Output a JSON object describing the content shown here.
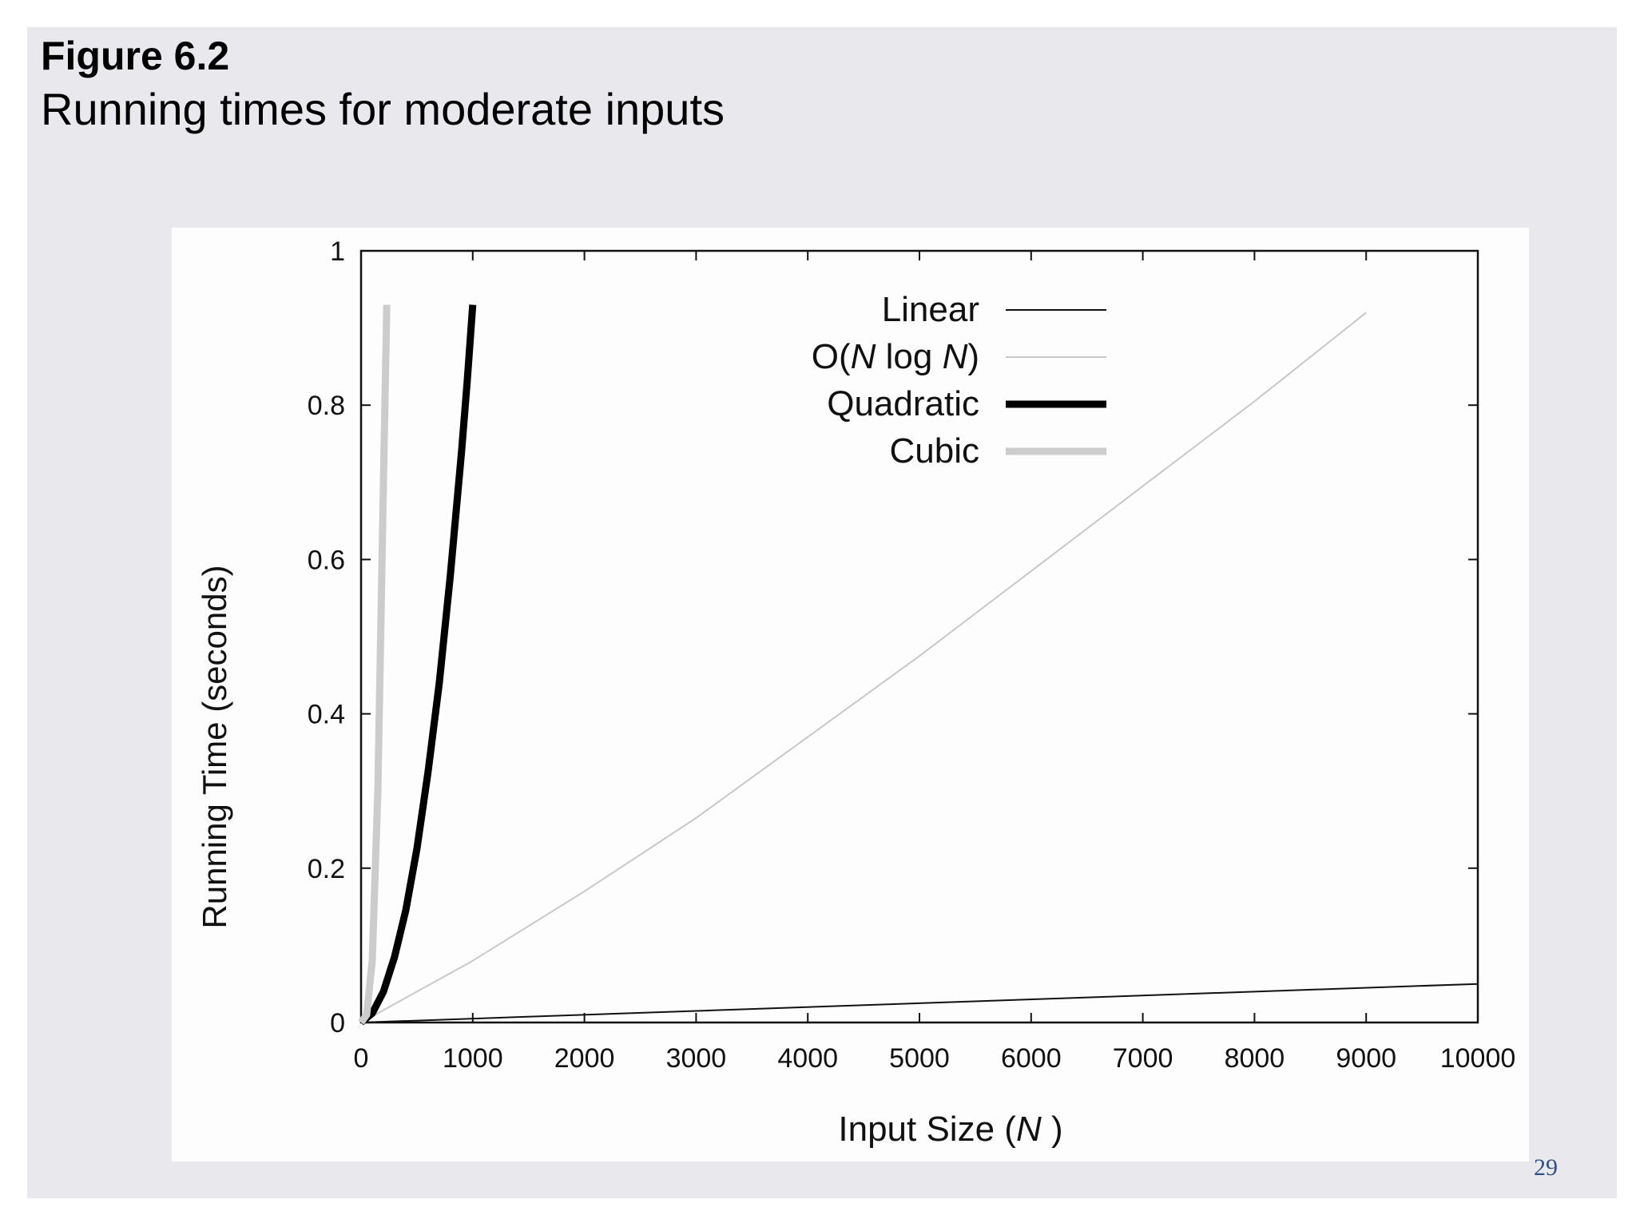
{
  "slide": {
    "figure_label": "Figure 6.2",
    "title": "Running times for moderate inputs",
    "page_number": "29"
  },
  "chart_data": {
    "type": "line",
    "xlabel_main": "Input Size (",
    "xlabel_var": "N",
    "xlabel_close": " )",
    "ylabel": "Running Time (seconds)",
    "xlim": [
      0,
      10000
    ],
    "ylim": [
      0,
      1
    ],
    "x_ticks": [
      0,
      1000,
      2000,
      3000,
      4000,
      5000,
      6000,
      7000,
      8000,
      9000,
      10000
    ],
    "y_ticks": [
      0,
      0.2,
      0.4,
      0.6,
      0.8,
      1
    ],
    "y_tick_labels": [
      "0",
      "0.2",
      "0.4",
      "0.6",
      "0.8",
      "1"
    ],
    "grid": false,
    "legend_position": "top-center",
    "series": [
      {
        "name": "Linear",
        "legend_parts": [
          {
            "t": "Linear",
            "i": false
          }
        ],
        "color": "#111111",
        "style": "thin-black",
        "x": [
          0,
          10000
        ],
        "y": [
          0,
          0.05
        ]
      },
      {
        "name": "O(N log N)",
        "legend_parts": [
          {
            "t": "O(",
            "i": false
          },
          {
            "t": "N",
            "i": true
          },
          {
            "t": " log ",
            "i": false
          },
          {
            "t": "N",
            "i": true
          },
          {
            "t": ")",
            "i": false
          }
        ],
        "color": "#c8c8c8",
        "style": "thin-gray",
        "x": [
          0,
          1000,
          2000,
          3000,
          4000,
          5000,
          6000,
          7000,
          8000,
          9000
        ],
        "y": [
          0,
          0.08,
          0.17,
          0.265,
          0.37,
          0.475,
          0.585,
          0.695,
          0.805,
          0.92
        ]
      },
      {
        "name": "Quadratic",
        "legend_parts": [
          {
            "t": "Quadratic",
            "i": false
          }
        ],
        "color": "#000000",
        "style": "thick-black",
        "x": [
          0,
          100,
          200,
          300,
          400,
          500,
          600,
          700,
          800,
          900,
          950,
          1000
        ],
        "y": [
          0,
          0.012,
          0.04,
          0.085,
          0.145,
          0.225,
          0.325,
          0.44,
          0.58,
          0.74,
          0.83,
          0.93
        ]
      },
      {
        "name": "Cubic",
        "legend_parts": [
          {
            "t": "Cubic",
            "i": false
          }
        ],
        "color": "#cccccc",
        "style": "thick-gray",
        "x": [
          0,
          50,
          100,
          150,
          200,
          230
        ],
        "y": [
          0,
          0.01,
          0.08,
          0.3,
          0.7,
          0.93
        ]
      }
    ]
  }
}
